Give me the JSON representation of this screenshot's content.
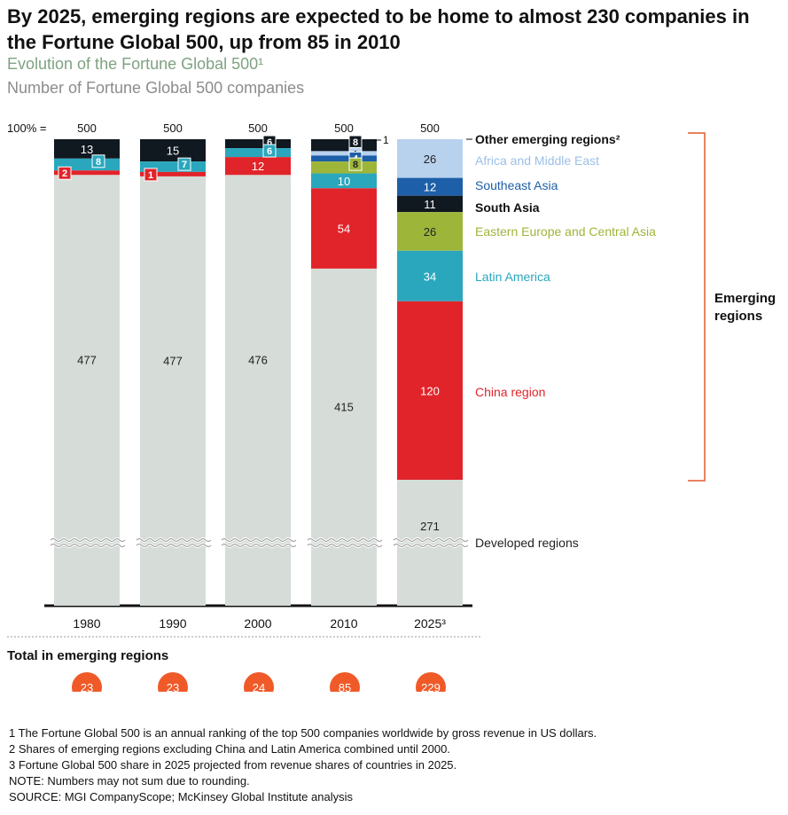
{
  "title": "By 2025, emerging regions are expected to be home to almost 230 companies in the Fortune Global 500, up from 85 in 2010",
  "subtitle": "Evolution of the Fortune Global 500¹",
  "unit_label": "Number of Fortune Global 500 companies",
  "emerging_bracket_label": "Emerging regions",
  "total_label": "Total in emerging regions",
  "footnotes": [
    "1  The Fortune Global 500 is an annual ranking of the top 500 companies worldwide by gross revenue in US dollars.",
    "2  Shares of emerging regions excluding China and Latin America combined until 2000.",
    "3  Fortune Global 500 share in 2025 projected from revenue shares of countries in 2025."
  ],
  "note": "NOTE: Numbers may not sum due to rounding.",
  "source": "SOURCE: MGI CompanyScope; McKinsey Global Institute analysis",
  "colors": {
    "developed": "#d6dcd7",
    "china": "#e1242a",
    "latin_america": "#2aa7bd",
    "eastern_europe": "#9db63a",
    "south_asia": "#101820",
    "southeast_asia": "#1d5fa8",
    "africa_middle_east": "#b8d2ee",
    "other_emerging": "#101820",
    "bracket": "#e05a2b",
    "total_circle": "#f05a28"
  },
  "chart_data": {
    "type": "bar",
    "stacked": true,
    "total_label": "100% =",
    "totals": [
      500,
      500,
      500,
      500,
      500
    ],
    "categories": [
      "1980",
      "1990",
      "2000",
      "2010",
      "2025³"
    ],
    "series": [
      {
        "name": "Developed regions",
        "values": [
          477,
          477,
          476,
          415,
          271
        ],
        "color": "#d6dcd7",
        "label_color": "#222222",
        "legend_color": "#222222"
      },
      {
        "name": "China region",
        "values": [
          2,
          1,
          12,
          54,
          120
        ],
        "color": "#e1242a",
        "label_color": "#ffffff",
        "legend_color": "#e1242a"
      },
      {
        "name": "Latin America",
        "values": [
          8,
          7,
          6,
          10,
          34
        ],
        "color": "#2aa7bd",
        "label_color": "#ffffff",
        "legend_color": "#2aa7bd"
      },
      {
        "name": "Eastern Europe and Central Asia",
        "values": [
          0,
          0,
          0,
          8,
          26
        ],
        "color": "#9db63a",
        "label_color": "#222222",
        "legend_color": "#9db63a"
      },
      {
        "name": "South Asia",
        "values": [
          0,
          0,
          0,
          0,
          11
        ],
        "color": "#101820",
        "label_color": "#ffffff",
        "legend_color": "#111111"
      },
      {
        "name": "Southeast Asia",
        "values": [
          0,
          0,
          0,
          4,
          12
        ],
        "color": "#1d5fa8",
        "label_color": "#ffffff",
        "legend_color": "#1d5fa8"
      },
      {
        "name": "Africa and Middle East",
        "values": [
          0,
          0,
          0,
          1,
          26
        ],
        "color": "#b8d2ee",
        "label_color": "#222222",
        "legend_color": "#9cc0e6"
      },
      {
        "name": "Other emerging regions²",
        "values": [
          13,
          15,
          6,
          8,
          0
        ],
        "color": "#101820",
        "label_color": "#ffffff",
        "legend_color": "#111111"
      }
    ],
    "emerging_totals": [
      23,
      23,
      24,
      85,
      229
    ],
    "axis_break_label": "Developed regions"
  }
}
